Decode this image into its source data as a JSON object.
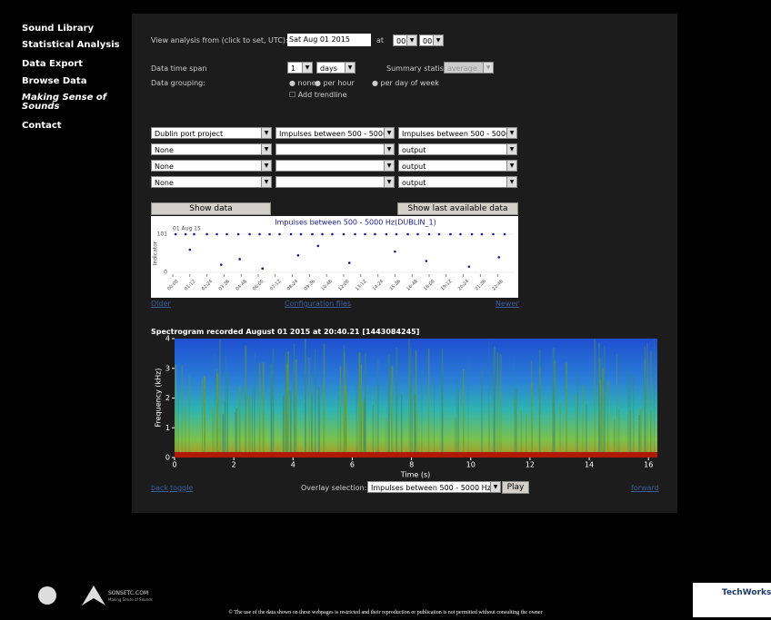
{
  "nav": [
    "Sound Library",
    "Statistical Analysis",
    "Data Export",
    "Browse Data",
    "Making Sense of Sounds",
    "Contact"
  ],
  "form": {
    "view_label": "View analysis from (click to set, UTC):",
    "date": "Sat Aug 01 2015",
    "at": "at",
    "hour": "00",
    "minute": "00",
    "span_label": "Data time span",
    "span_value": "1",
    "span_unit": "days",
    "summary_label": "Summary statistic:",
    "summary_value": "average",
    "grouping_label": "Data grouping:",
    "grouping_options": [
      "none",
      "per hour",
      "per day of week"
    ],
    "trendline": "Add trendline"
  },
  "selectors": [
    [
      "Dublin port project",
      "Impulses between 500 - 5000 Hz",
      "Impulses between 500 - 5000 Hz"
    ],
    [
      "None",
      "output"
    ],
    [
      "None",
      "output"
    ],
    [
      "None",
      "output"
    ]
  ],
  "buttons": {
    "show": "Show data",
    "last": "Show last available data"
  },
  "mini_chart": {
    "type": "scatter",
    "title": "Impulses between 500 - 5000 Hz(DUBLIN_1)",
    "date": "01 Aug 15",
    "y_label": "Indicator",
    "color": "#1a1a8c",
    "x": [
      0.2,
      0.9,
      1.5,
      2.4,
      3.1,
      3.8,
      4.6,
      5.4,
      6.1,
      6.8,
      7.5,
      8.3,
      9.0,
      9.8,
      10.5,
      11.2,
      12.0,
      12.8,
      13.5,
      14.2,
      15.0,
      15.7,
      16.5,
      17.2,
      18.0,
      18.7,
      19.5,
      20.2,
      21.0,
      21.7,
      22.5,
      23.3,
      1.2,
      3.4,
      4.7,
      6.3,
      8.8,
      10.2,
      12.4,
      15.6,
      17.8,
      20.8,
      22.9
    ],
    "values": [
      101,
      101,
      101,
      101,
      101,
      101,
      101,
      101,
      101,
      101,
      101,
      101,
      101,
      101,
      101,
      101,
      101,
      101,
      101,
      101,
      101,
      101,
      101,
      101,
      101,
      101,
      101,
      101,
      101,
      101,
      101,
      101,
      60,
      20,
      35,
      10,
      45,
      70,
      25,
      55,
      30,
      15,
      40
    ],
    "xlim": [
      0,
      24
    ],
    "ylim": [
      0,
      101
    ],
    "yticks": [
      101,
      0
    ],
    "xticks": [
      {
        "value": 0,
        "label": "00:00"
      },
      {
        "value": 1.2,
        "label": "01:12"
      },
      {
        "value": 2.4,
        "label": "02:24"
      },
      {
        "value": 3.6,
        "label": "03:36"
      },
      {
        "value": 4.8,
        "label": "04:48"
      },
      {
        "value": 6,
        "label": "06:00"
      },
      {
        "value": 7.2,
        "label": "07:12"
      },
      {
        "value": 8.4,
        "label": "08:24"
      },
      {
        "value": 9.6,
        "label": "09:36"
      },
      {
        "value": 10.8,
        "label": "10:48"
      },
      {
        "value": 12,
        "label": "12:00"
      },
      {
        "value": 13.2,
        "label": "13:12"
      },
      {
        "value": 14.4,
        "label": "14:24"
      },
      {
        "value": 15.6,
        "label": "15:36"
      },
      {
        "value": 16.8,
        "label": "16:48"
      },
      {
        "value": 18,
        "label": "18:00"
      },
      {
        "value": 19.2,
        "label": "19:12"
      },
      {
        "value": 20.4,
        "label": "20:24"
      },
      {
        "value": 21.6,
        "label": "21:36"
      },
      {
        "value": 22.8,
        "label": "22:48"
      }
    ]
  },
  "links": {
    "older": "Older",
    "config": "Configuration files",
    "newer": "Newer"
  },
  "spectrogram": {
    "title": "Spectrogram recorded August 01 2015 at 20:40.21 [1443084245]",
    "y_label": "Frequency (kHz)",
    "x_label": "Time (s)",
    "xlim": [
      0,
      16.3
    ],
    "ylim": [
      0,
      4
    ],
    "xticks": [
      0,
      2,
      4,
      6,
      8,
      10,
      12,
      14,
      16
    ],
    "yticks": [
      0,
      1,
      2,
      3,
      4
    ]
  },
  "controls": {
    "back": "back",
    "toggle": "toggle",
    "overlay_label": "Overlay selection:",
    "overlay_value": "Impulses between 500 - 5000 Hz",
    "play": "Play",
    "forward": "forward"
  },
  "footer": {
    "logo_name": "SONSETC.COM",
    "logo_tagline": "Making Sense of Sounds",
    "partner": "TechWorks",
    "notice": "© The use of the data shown on these webpages is restricted and their reproduction or publication is not permitted without consulting the owner"
  }
}
